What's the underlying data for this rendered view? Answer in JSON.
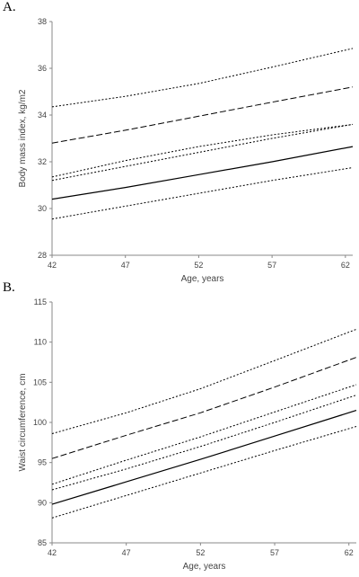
{
  "panels": [
    {
      "label": "A."
    },
    {
      "label": "B."
    }
  ],
  "chart_data": [
    {
      "type": "line",
      "title": "",
      "xlabel": "Age, years",
      "ylabel": "Body mass index, kg/m2",
      "xlim": [
        42,
        62.5
      ],
      "ylim": [
        28,
        38
      ],
      "xticks": [
        42,
        47,
        52,
        57,
        62
      ],
      "yticks": [
        28,
        30,
        32,
        34,
        36,
        38
      ],
      "grid": false,
      "x": [
        42,
        47,
        52,
        57,
        62.5
      ],
      "series": [
        {
          "style": "dotted",
          "values": [
            34.35,
            34.8,
            35.35,
            36.05,
            36.85
          ]
        },
        {
          "style": "dashed",
          "values": [
            32.8,
            33.35,
            33.95,
            34.55,
            35.2
          ]
        },
        {
          "style": "dotted",
          "values": [
            31.35,
            32.05,
            32.65,
            33.15,
            33.6
          ]
        },
        {
          "style": "dotted",
          "values": [
            31.2,
            31.8,
            32.4,
            33.0,
            33.6
          ]
        },
        {
          "style": "solid",
          "values": [
            30.4,
            30.9,
            31.45,
            32.0,
            32.65
          ]
        },
        {
          "style": "dotted",
          "values": [
            29.55,
            30.1,
            30.65,
            31.2,
            31.75
          ]
        }
      ]
    },
    {
      "type": "line",
      "title": "",
      "xlabel": "Age, years",
      "ylabel": "Waist circumference, cm",
      "xlim": [
        42,
        62.5
      ],
      "ylim": [
        85,
        115
      ],
      "xticks": [
        42,
        47,
        52,
        57,
        62
      ],
      "yticks": [
        85,
        90,
        95,
        100,
        105,
        110,
        115
      ],
      "grid": false,
      "x": [
        42,
        47,
        52,
        57,
        62.5
      ],
      "series": [
        {
          "style": "dotted",
          "values": [
            98.6,
            101.2,
            104.2,
            107.7,
            111.6
          ]
        },
        {
          "style": "dashed",
          "values": [
            95.5,
            98.4,
            101.2,
            104.4,
            108.1
          ]
        },
        {
          "style": "dotted",
          "values": [
            92.3,
            95.3,
            98.2,
            101.3,
            104.7
          ]
        },
        {
          "style": "dotted",
          "values": [
            91.6,
            94.2,
            97.0,
            100.0,
            103.4
          ]
        },
        {
          "style": "solid",
          "values": [
            89.8,
            92.6,
            95.4,
            98.3,
            101.5
          ]
        },
        {
          "style": "dotted",
          "values": [
            88.1,
            90.9,
            93.7,
            96.5,
            99.5
          ]
        }
      ]
    }
  ]
}
